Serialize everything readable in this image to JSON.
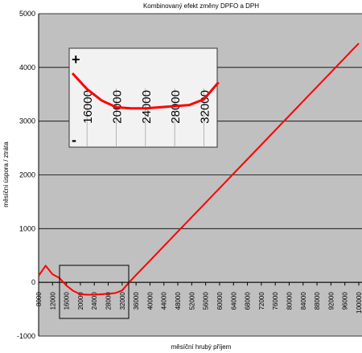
{
  "chart_data": [
    {
      "type": "line",
      "title": "Kombinovaný efekt změny DPFO a DPH",
      "x_label": "měsíční hrubý příjem",
      "y_label": "měsíční úspora / ztráta",
      "x": [
        8000,
        10000,
        12000,
        14000,
        16000,
        18000,
        20000,
        22000,
        24000,
        26000,
        28000,
        30000,
        32000,
        34000,
        36000,
        38000,
        40000,
        42000,
        44000,
        46000,
        48000,
        50000,
        52000,
        54000,
        56000,
        58000,
        60000,
        62000,
        64000,
        66000,
        68000,
        70000,
        72000,
        74000,
        76000,
        78000,
        80000,
        82000,
        84000,
        86000,
        88000,
        90000,
        92000,
        94000,
        96000,
        98000,
        100000
      ],
      "series": [
        {
          "color": "#ff0000",
          "values": [
            120,
            310,
            150,
            80,
            -60,
            -160,
            -220,
            -230,
            -230,
            -220,
            -210,
            -200,
            -150,
            0,
            135,
            270,
            404,
            539,
            674,
            809,
            944,
            1078,
            1213,
            1348,
            1483,
            1618,
            1752,
            1887,
            2022,
            2157,
            2292,
            2426,
            2561,
            2696,
            2831,
            2966,
            3100,
            3235,
            3370,
            3505,
            3640,
            3774,
            3909,
            4044,
            4179,
            4314,
            4448
          ]
        }
      ],
      "xlim": [
        8000,
        100000
      ],
      "xticks": [
        8000,
        12000,
        16000,
        20000,
        24000,
        28000,
        32000,
        36000,
        40000,
        44000,
        48000,
        52000,
        56000,
        60000,
        64000,
        68000,
        72000,
        76000,
        80000,
        84000,
        88000,
        92000,
        96000,
        100000
      ],
      "ylim": [
        -1000,
        5000
      ],
      "yticks": [
        -1000,
        0,
        1000,
        2000,
        3000,
        4000,
        5000
      ],
      "grid": true
    },
    {
      "type": "line",
      "annotations": [
        "+",
        "-"
      ],
      "x": [
        14000,
        16000,
        18000,
        20000,
        22000,
        24000,
        26000,
        28000,
        30000,
        32000,
        34000
      ],
      "series": [
        {
          "color": "#ff0000",
          "values": [
            80,
            -60,
            -160,
            -220,
            -230,
            -230,
            -220,
            -210,
            -200,
            -150,
            0
          ]
        }
      ],
      "xlim": [
        14000,
        33600
      ],
      "xticks": [
        16000,
        20000,
        24000,
        28000,
        32000
      ],
      "ylim": [
        -550,
        300
      ]
    }
  ]
}
